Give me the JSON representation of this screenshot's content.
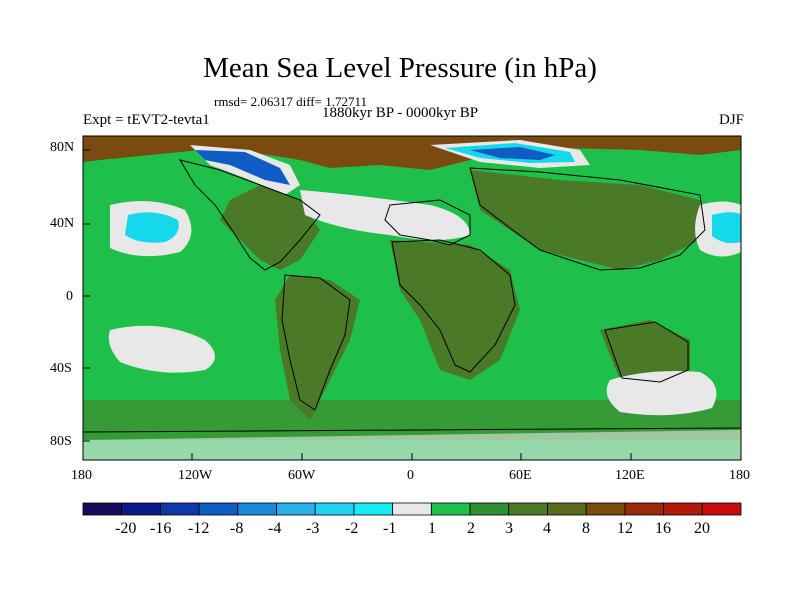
{
  "title": "Mean Sea Level Pressure (in hPa)",
  "stats": "rmsd= 2.06317 diff= 1.72711",
  "period": "1880kyr BP - 0000kyr BP",
  "experiment": "Expt = tEVT2-tevta1",
  "season": "DJF",
  "lat_labels": [
    "80N",
    "40N",
    "0",
    "40S",
    "80S"
  ],
  "lon_labels": [
    "180",
    "120W",
    "60W",
    "0",
    "60E",
    "120E",
    "180"
  ],
  "colorbar": {
    "labels": [
      "-20",
      "-16",
      "-12",
      "-8",
      "-4",
      "-3",
      "-2",
      "-1",
      "1",
      "2",
      "3",
      "4",
      "8",
      "12",
      "16",
      "20"
    ],
    "colors": [
      "#1a0a5a",
      "#0a1a8c",
      "#0d3aa8",
      "#0f5cc4",
      "#1c86d8",
      "#2ab0e8",
      "#1ed2f0",
      "#16ecf4",
      "#e8e8e8",
      "#1ec04a",
      "#2e8e30",
      "#4a7a28",
      "#5a6a1e",
      "#7a4a10",
      "#9a2a0a",
      "#b01a0a",
      "#c80c0c"
    ]
  },
  "colors": {
    "bg_green": "#1ec04a",
    "olive": "#4a7a28",
    "white": "#e8e8e8",
    "cyan": "#16d8ec",
    "blue": "#0f5cc4",
    "brown": "#7a4a10",
    "dark_green": "#2e8e30"
  }
}
